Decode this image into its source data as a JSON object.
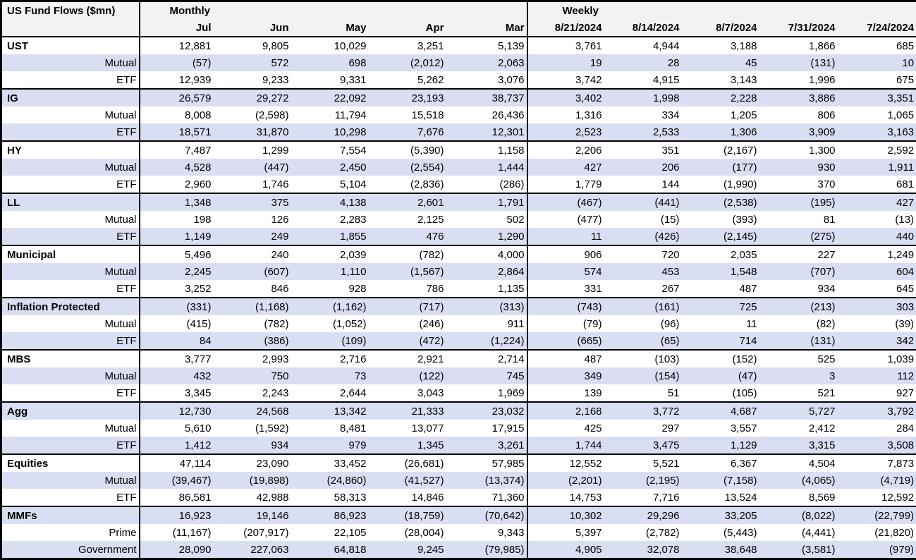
{
  "colors": {
    "band_fill": "#d9def2",
    "header_fill": "#f2f2f2",
    "border": "#000000",
    "text": "#000000",
    "background": "#ffffff"
  },
  "chart_data": {
    "type": "table",
    "title": "US Fund Flows ($mn)",
    "column_groups": [
      {
        "label": "Monthly",
        "columns": [
          "Jul",
          "Jun",
          "May",
          "Apr",
          "Mar"
        ]
      },
      {
        "label": "Weekly",
        "columns": [
          "8/21/2024",
          "8/14/2024",
          "8/7/2024",
          "7/31/2024",
          "7/24/2024"
        ]
      }
    ],
    "rows": [
      {
        "label": "UST",
        "level": "group",
        "monthly": [
          "12,881",
          "9,805",
          "10,029",
          "3,251",
          "5,139"
        ],
        "weekly": [
          "3,761",
          "4,944",
          "3,188",
          "1,866",
          "685"
        ]
      },
      {
        "label": "Mutual",
        "level": "sub",
        "monthly": [
          "(57)",
          "572",
          "698",
          "(2,012)",
          "2,063"
        ],
        "weekly": [
          "19",
          "28",
          "45",
          "(131)",
          "10"
        ]
      },
      {
        "label": "ETF",
        "level": "sub",
        "monthly": [
          "12,939",
          "9,233",
          "9,331",
          "5,262",
          "3,076"
        ],
        "weekly": [
          "3,742",
          "4,915",
          "3,143",
          "1,996",
          "675"
        ]
      },
      {
        "label": "IG",
        "level": "group",
        "monthly": [
          "26,579",
          "29,272",
          "22,092",
          "23,193",
          "38,737"
        ],
        "weekly": [
          "3,402",
          "1,998",
          "2,228",
          "3,886",
          "3,351"
        ]
      },
      {
        "label": "Mutual",
        "level": "sub",
        "monthly": [
          "8,008",
          "(2,598)",
          "11,794",
          "15,518",
          "26,436"
        ],
        "weekly": [
          "1,316",
          "334",
          "1,205",
          "806",
          "1,065"
        ]
      },
      {
        "label": "ETF",
        "level": "sub",
        "monthly": [
          "18,571",
          "31,870",
          "10,298",
          "7,676",
          "12,301"
        ],
        "weekly": [
          "2,523",
          "2,533",
          "1,306",
          "3,909",
          "3,163"
        ]
      },
      {
        "label": "HY",
        "level": "group",
        "monthly": [
          "7,487",
          "1,299",
          "7,554",
          "(5,390)",
          "1,158"
        ],
        "weekly": [
          "2,206",
          "351",
          "(2,167)",
          "1,300",
          "2,592"
        ]
      },
      {
        "label": "Mutual",
        "level": "sub",
        "monthly": [
          "4,528",
          "(447)",
          "2,450",
          "(2,554)",
          "1,444"
        ],
        "weekly": [
          "427",
          "206",
          "(177)",
          "930",
          "1,911"
        ]
      },
      {
        "label": "ETF",
        "level": "sub",
        "monthly": [
          "2,960",
          "1,746",
          "5,104",
          "(2,836)",
          "(286)"
        ],
        "weekly": [
          "1,779",
          "144",
          "(1,990)",
          "370",
          "681"
        ]
      },
      {
        "label": "LL",
        "level": "group",
        "monthly": [
          "1,348",
          "375",
          "4,138",
          "2,601",
          "1,791"
        ],
        "weekly": [
          "(467)",
          "(441)",
          "(2,538)",
          "(195)",
          "427"
        ]
      },
      {
        "label": "Mutual",
        "level": "sub",
        "monthly": [
          "198",
          "126",
          "2,283",
          "2,125",
          "502"
        ],
        "weekly": [
          "(477)",
          "(15)",
          "(393)",
          "81",
          "(13)"
        ]
      },
      {
        "label": "ETF",
        "level": "sub",
        "monthly": [
          "1,149",
          "249",
          "1,855",
          "476",
          "1,290"
        ],
        "weekly": [
          "11",
          "(426)",
          "(2,145)",
          "(275)",
          "440"
        ]
      },
      {
        "label": "Municipal",
        "level": "group",
        "monthly": [
          "5,496",
          "240",
          "2,039",
          "(782)",
          "4,000"
        ],
        "weekly": [
          "906",
          "720",
          "2,035",
          "227",
          "1,249"
        ]
      },
      {
        "label": "Mutual",
        "level": "sub",
        "monthly": [
          "2,245",
          "(607)",
          "1,110",
          "(1,567)",
          "2,864"
        ],
        "weekly": [
          "574",
          "453",
          "1,548",
          "(707)",
          "604"
        ]
      },
      {
        "label": "ETF",
        "level": "sub",
        "monthly": [
          "3,252",
          "846",
          "928",
          "786",
          "1,135"
        ],
        "weekly": [
          "331",
          "267",
          "487",
          "934",
          "645"
        ]
      },
      {
        "label": "Inflation Protected",
        "level": "group",
        "monthly": [
          "(331)",
          "(1,168)",
          "(1,162)",
          "(717)",
          "(313)"
        ],
        "weekly": [
          "(743)",
          "(161)",
          "725",
          "(213)",
          "303"
        ]
      },
      {
        "label": "Mutual",
        "level": "sub",
        "monthly": [
          "(415)",
          "(782)",
          "(1,052)",
          "(246)",
          "911"
        ],
        "weekly": [
          "(79)",
          "(96)",
          "11",
          "(82)",
          "(39)"
        ]
      },
      {
        "label": "ETF",
        "level": "sub",
        "monthly": [
          "84",
          "(386)",
          "(109)",
          "(472)",
          "(1,224)"
        ],
        "weekly": [
          "(665)",
          "(65)",
          "714",
          "(131)",
          "342"
        ]
      },
      {
        "label": "MBS",
        "level": "group",
        "monthly": [
          "3,777",
          "2,993",
          "2,716",
          "2,921",
          "2,714"
        ],
        "weekly": [
          "487",
          "(103)",
          "(152)",
          "525",
          "1,039"
        ]
      },
      {
        "label": "Mutual",
        "level": "sub",
        "monthly": [
          "432",
          "750",
          "73",
          "(122)",
          "745"
        ],
        "weekly": [
          "349",
          "(154)",
          "(47)",
          "3",
          "112"
        ]
      },
      {
        "label": "ETF",
        "level": "sub",
        "monthly": [
          "3,345",
          "2,243",
          "2,644",
          "3,043",
          "1,969"
        ],
        "weekly": [
          "139",
          "51",
          "(105)",
          "521",
          "927"
        ]
      },
      {
        "label": "Agg",
        "level": "group",
        "monthly": [
          "12,730",
          "24,568",
          "13,342",
          "21,333",
          "23,032"
        ],
        "weekly": [
          "2,168",
          "3,772",
          "4,687",
          "5,727",
          "3,792"
        ]
      },
      {
        "label": "Mutual",
        "level": "sub",
        "monthly": [
          "5,610",
          "(1,592)",
          "8,481",
          "13,077",
          "17,915"
        ],
        "weekly": [
          "425",
          "297",
          "3,557",
          "2,412",
          "284"
        ]
      },
      {
        "label": "ETF",
        "level": "sub",
        "monthly": [
          "1,412",
          "934",
          "979",
          "1,345",
          "3,261"
        ],
        "weekly": [
          "1,744",
          "3,475",
          "1,129",
          "3,315",
          "3,508"
        ]
      },
      {
        "label": "Equities",
        "level": "group",
        "monthly": [
          "47,114",
          "23,090",
          "33,452",
          "(26,681)",
          "57,985"
        ],
        "weekly": [
          "12,552",
          "5,521",
          "6,367",
          "4,504",
          "7,873"
        ]
      },
      {
        "label": "Mutual",
        "level": "sub",
        "monthly": [
          "(39,467)",
          "(19,898)",
          "(24,860)",
          "(41,527)",
          "(13,374)"
        ],
        "weekly": [
          "(2,201)",
          "(2,195)",
          "(7,158)",
          "(4,065)",
          "(4,719)"
        ]
      },
      {
        "label": "ETF",
        "level": "sub",
        "monthly": [
          "86,581",
          "42,988",
          "58,313",
          "14,846",
          "71,360"
        ],
        "weekly": [
          "14,753",
          "7,716",
          "13,524",
          "8,569",
          "12,592"
        ]
      },
      {
        "label": "MMFs",
        "level": "group",
        "monthly": [
          "16,923",
          "19,146",
          "86,923",
          "(18,759)",
          "(70,642)"
        ],
        "weekly": [
          "10,302",
          "29,296",
          "33,205",
          "(8,022)",
          "(22,799)"
        ]
      },
      {
        "label": "Prime",
        "level": "sub",
        "monthly": [
          "(11,167)",
          "(207,917)",
          "22,105",
          "(28,004)",
          "9,343"
        ],
        "weekly": [
          "5,397",
          "(2,782)",
          "(5,443)",
          "(4,441)",
          "(21,820)"
        ]
      },
      {
        "label": "Government",
        "level": "sub",
        "monthly": [
          "28,090",
          "227,063",
          "64,818",
          "9,245",
          "(79,985)"
        ],
        "weekly": [
          "4,905",
          "32,078",
          "38,648",
          "(3,581)",
          "(979)"
        ]
      }
    ]
  }
}
